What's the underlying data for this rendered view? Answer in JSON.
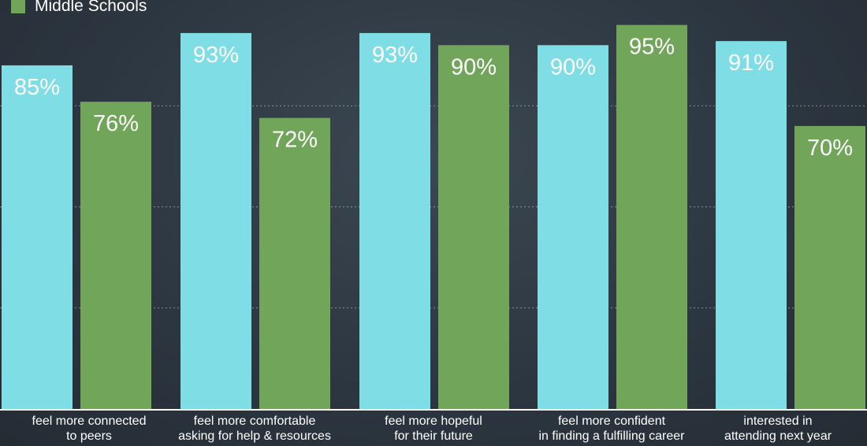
{
  "chart_data": {
    "type": "bar",
    "categories": [
      [
        "feel more connected",
        "to peers"
      ],
      [
        "feel more comfortable",
        "asking for help & resources"
      ],
      [
        "feel more hopeful",
        "for their future"
      ],
      [
        "feel more confident",
        "in finding a fulfilling career"
      ],
      [
        "interested in",
        "attending next year"
      ]
    ],
    "series": [
      {
        "name": "",
        "color": "#7fdde6",
        "values": [
          85,
          93,
          93,
          90,
          91
        ],
        "labels": [
          "85%",
          "93%",
          "93%",
          "90%",
          "91%"
        ]
      },
      {
        "name": "Middle Schools",
        "color": "#71a55a",
        "values": [
          76,
          72,
          90,
          95,
          70
        ],
        "labels": [
          "76%",
          "72%",
          "90%",
          "95%",
          "70%"
        ]
      }
    ],
    "ylim": [
      0,
      100
    ],
    "grid": true,
    "legend": "top-left",
    "title": "",
    "xlabel": "",
    "ylabel": ""
  }
}
